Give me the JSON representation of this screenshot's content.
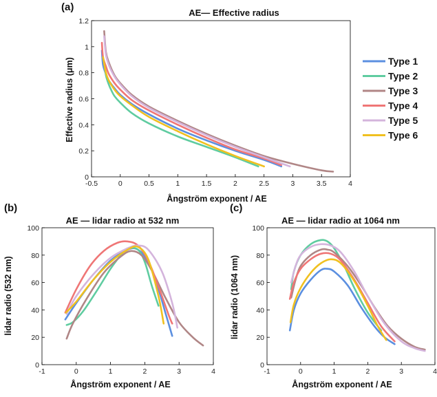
{
  "chart_data": [
    {
      "panel": "(a)",
      "type": "line",
      "title": "AE— Effective radius",
      "xlabel": "Ångström exponent / AE",
      "ylabel": "Effective radius (μm)",
      "xlim": [
        -0.5,
        4
      ],
      "ylim": [
        0,
        1.2
      ],
      "xticks": [
        "-0.5",
        "0",
        "0.5",
        "1",
        "1.5",
        "2",
        "2.5",
        "3",
        "3.5",
        "4"
      ],
      "yticks": [
        "0",
        "0.2",
        "0.4",
        "0.6",
        "0.8",
        "1",
        "1.2"
      ],
      "legend_placement": "right",
      "series": [
        {
          "name": "Type 1",
          "color": "#5b8fe0",
          "x": [
            -0.32,
            -0.3,
            -0.25,
            -0.2,
            -0.1,
            0,
            0.2,
            0.5,
            1.0,
            1.5,
            2.0,
            2.5,
            2.8
          ],
          "y": [
            0.97,
            0.86,
            0.79,
            0.74,
            0.68,
            0.63,
            0.56,
            0.48,
            0.37,
            0.28,
            0.2,
            0.13,
            0.08
          ]
        },
        {
          "name": "Type 2",
          "color": "#5fcca0",
          "x": [
            -0.28,
            -0.25,
            -0.2,
            -0.15,
            -0.1,
            0,
            0.2,
            0.5,
            1.0,
            1.5,
            2.0,
            2.4
          ],
          "y": [
            0.88,
            0.78,
            0.71,
            0.66,
            0.62,
            0.57,
            0.49,
            0.41,
            0.31,
            0.23,
            0.15,
            0.08
          ]
        },
        {
          "name": "Type 3",
          "color": "#b08686",
          "x": [
            -0.28,
            -0.25,
            -0.2,
            -0.1,
            0,
            0.2,
            0.5,
            1.0,
            1.5,
            2.0,
            2.5,
            3.0,
            3.5,
            3.7
          ],
          "y": [
            1.12,
            0.96,
            0.88,
            0.78,
            0.72,
            0.63,
            0.54,
            0.43,
            0.33,
            0.24,
            0.16,
            0.1,
            0.05,
            0.04
          ]
        },
        {
          "name": "Type 4",
          "color": "#ef7676",
          "x": [
            -0.32,
            -0.3,
            -0.25,
            -0.2,
            -0.1,
            0,
            0.2,
            0.5,
            1.0,
            1.5,
            2.0,
            2.5,
            2.8
          ],
          "y": [
            1.03,
            0.92,
            0.85,
            0.79,
            0.72,
            0.67,
            0.59,
            0.51,
            0.4,
            0.3,
            0.21,
            0.14,
            0.09
          ]
        },
        {
          "name": "Type 5",
          "color": "#d4b4dc",
          "x": [
            -0.28,
            -0.25,
            -0.2,
            -0.1,
            0,
            0.2,
            0.5,
            1.0,
            1.5,
            2.0,
            2.5,
            2.95
          ],
          "y": [
            1.08,
            0.94,
            0.86,
            0.77,
            0.71,
            0.62,
            0.53,
            0.42,
            0.32,
            0.23,
            0.15,
            0.08
          ]
        },
        {
          "name": "Type 6",
          "color": "#f0c020",
          "x": [
            -0.3,
            -0.25,
            -0.2,
            -0.1,
            0,
            0.2,
            0.5,
            1.0,
            1.5,
            2.0,
            2.5
          ],
          "y": [
            0.92,
            0.8,
            0.74,
            0.67,
            0.62,
            0.55,
            0.46,
            0.35,
            0.25,
            0.16,
            0.08
          ]
        }
      ]
    },
    {
      "panel": "(b)",
      "type": "line",
      "title": "AE — lidar radio at 532 nm",
      "xlabel": "Ångström exponent / AE",
      "ylabel": "lidar radio (532 nm)",
      "xlim": [
        -1,
        4
      ],
      "ylim": [
        0,
        100
      ],
      "xticks": [
        "-1",
        "0",
        "1",
        "2",
        "3",
        "4"
      ],
      "yticks": [
        "0",
        "20",
        "40",
        "60",
        "80",
        "100"
      ],
      "series": [
        {
          "name": "Type 1",
          "color": "#5b8fe0",
          "x": [
            -0.32,
            0,
            0.5,
            1.0,
            1.5,
            1.8,
            2.1,
            2.4,
            2.6,
            2.8
          ],
          "y": [
            33,
            45,
            62,
            76,
            84,
            84,
            75,
            55,
            38,
            21
          ]
        },
        {
          "name": "Type 2",
          "color": "#5fcca0",
          "x": [
            -0.28,
            -0.1,
            0.2,
            0.6,
            1.0,
            1.3,
            1.5,
            1.8,
            2.0,
            2.2,
            2.4
          ],
          "y": [
            29,
            31,
            39,
            54,
            70,
            80,
            85,
            84,
            75,
            58,
            43
          ]
        },
        {
          "name": "Type 3",
          "color": "#b08686",
          "x": [
            -0.28,
            -0.1,
            0.3,
            0.8,
            1.3,
            1.6,
            1.9,
            2.2,
            2.6,
            3.0,
            3.4,
            3.7
          ],
          "y": [
            19,
            30,
            48,
            67,
            79,
            83,
            80,
            69,
            49,
            31,
            20,
            14
          ]
        },
        {
          "name": "Type 4",
          "color": "#ef7676",
          "x": [
            -0.32,
            0,
            0.4,
            0.8,
            1.2,
            1.5,
            1.8,
            2.1,
            2.4,
            2.7,
            2.8
          ],
          "y": [
            38,
            55,
            72,
            83,
            89,
            90,
            87,
            76,
            57,
            36,
            30
          ]
        },
        {
          "name": "Type 5",
          "color": "#d4b4dc",
          "x": [
            -0.28,
            0,
            0.5,
            1.0,
            1.5,
            1.8,
            2.1,
            2.5,
            2.8,
            2.95
          ],
          "y": [
            37,
            50,
            66,
            78,
            85,
            87,
            84,
            68,
            45,
            27
          ]
        },
        {
          "name": "Type 6",
          "color": "#f0c020",
          "x": [
            -0.3,
            0,
            0.5,
            1.0,
            1.5,
            1.8,
            2.1,
            2.4,
            2.55
          ],
          "y": [
            38,
            46,
            62,
            75,
            84,
            86,
            77,
            50,
            30
          ]
        }
      ]
    },
    {
      "panel": "(c)",
      "type": "line",
      "title": "AE — lidar radio at 1064 nm",
      "xlabel": "Ångström exponent / AE",
      "ylabel": "lidar radio (1064 nm)",
      "xlim": [
        -1,
        4
      ],
      "ylim": [
        0,
        100
      ],
      "xticks": [
        "-1",
        "0",
        "1",
        "2",
        "3",
        "4"
      ],
      "yticks": [
        "0",
        "20",
        "40",
        "60",
        "80",
        "100"
      ],
      "series": [
        {
          "name": "Type 1",
          "color": "#5b8fe0",
          "x": [
            -0.32,
            -0.2,
            0,
            0.3,
            0.6,
            0.8,
            1.0,
            1.4,
            1.8,
            2.2,
            2.5,
            2.8
          ],
          "y": [
            25,
            40,
            52,
            62,
            69,
            70,
            68,
            58,
            42,
            28,
            20,
            15
          ]
        },
        {
          "name": "Type 2",
          "color": "#5fcca0",
          "x": [
            -0.28,
            -0.2,
            0,
            0.3,
            0.6,
            0.8,
            1.0,
            1.3,
            1.6,
            2.0,
            2.4
          ],
          "y": [
            55,
            68,
            80,
            88,
            91,
            90,
            85,
            72,
            56,
            38,
            25
          ]
        },
        {
          "name": "Type 3",
          "color": "#b08686",
          "x": [
            -0.28,
            -0.15,
            0,
            0.3,
            0.6,
            0.8,
            1.0,
            1.4,
            1.8,
            2.2,
            2.6,
            3.0,
            3.4,
            3.7
          ],
          "y": [
            49,
            62,
            72,
            80,
            84,
            84,
            82,
            72,
            58,
            42,
            28,
            19,
            13,
            11
          ]
        },
        {
          "name": "Type 4",
          "color": "#ef7676",
          "x": [
            -0.32,
            -0.2,
            0,
            0.3,
            0.6,
            0.9,
            1.2,
            1.6,
            2.0,
            2.4,
            2.8
          ],
          "y": [
            48,
            60,
            70,
            77,
            81,
            81,
            76,
            62,
            45,
            28,
            17
          ]
        },
        {
          "name": "Type 5",
          "color": "#d4b4dc",
          "x": [
            -0.28,
            -0.15,
            0,
            0.3,
            0.6,
            0.9,
            1.2,
            1.6,
            2.0,
            2.5,
            3.0,
            3.4,
            3.7
          ],
          "y": [
            60,
            72,
            80,
            86,
            88,
            87,
            82,
            68,
            50,
            30,
            17,
            12,
            10
          ]
        },
        {
          "name": "Type 6",
          "color": "#f0c020",
          "x": [
            -0.3,
            -0.2,
            0,
            0.3,
            0.6,
            0.9,
            1.2,
            1.6,
            2.0,
            2.3,
            2.55
          ],
          "y": [
            31,
            44,
            56,
            67,
            74,
            77,
            74,
            61,
            43,
            28,
            18
          ]
        }
      ]
    }
  ]
}
